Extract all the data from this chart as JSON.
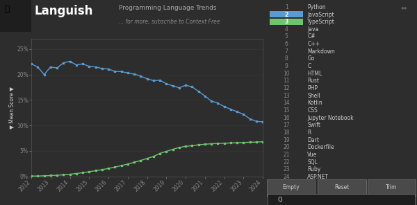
{
  "background_color": "#2d2d2d",
  "plot_bg_color": "#2d2d2d",
  "title": "Languish",
  "subtitle_line1": "Programming Language Trends",
  "subtitle_line2": "... for more, subscribe to Context Free",
  "ylabel": "▼ Mean Score ▼",
  "javascript": [
    22.1,
    21.5,
    20.0,
    21.5,
    21.3,
    22.3,
    22.6,
    21.9,
    22.1,
    21.6,
    21.5,
    21.2,
    21.1,
    20.6,
    20.6,
    20.3,
    20.1,
    19.7,
    19.2,
    18.8,
    18.9,
    18.2,
    17.8,
    17.4,
    17.9,
    17.6,
    16.7,
    15.8,
    14.8,
    14.4,
    13.7,
    13.2,
    12.7,
    12.2,
    11.3,
    10.8,
    10.7
  ],
  "typescript": [
    0.05,
    0.05,
    0.1,
    0.15,
    0.2,
    0.3,
    0.4,
    0.55,
    0.7,
    0.9,
    1.1,
    1.3,
    1.55,
    1.8,
    2.1,
    2.4,
    2.75,
    3.1,
    3.5,
    3.9,
    4.5,
    4.9,
    5.3,
    5.65,
    5.9,
    6.0,
    6.2,
    6.3,
    6.4,
    6.45,
    6.5,
    6.55,
    6.6,
    6.62,
    6.7,
    6.72,
    6.8
  ],
  "js_color": "#5b9bd5",
  "ts_color": "#70c470",
  "x_ticks": [
    2012,
    2013,
    2014,
    2015,
    2016,
    2017,
    2018,
    2019,
    2020,
    2021,
    2022,
    2023,
    2024
  ],
  "x_tick_labels": [
    "2012",
    "2013",
    "2014",
    "2015",
    "2016",
    "2017",
    "2018",
    "2019",
    "2020",
    "2021",
    "2022",
    "2023",
    "2024"
  ],
  "y_ticks": [
    0,
    5,
    10,
    15,
    20,
    25
  ],
  "y_tick_labels": [
    "0%",
    "5%",
    "10%",
    "15%",
    "20%",
    "25%"
  ],
  "ylim": [
    0,
    27
  ],
  "xlim": [
    2012,
    2024
  ],
  "legend_items": [
    {
      "num": "1",
      "label": "Python",
      "color": null
    },
    {
      "num": "2",
      "label": "JavaScript",
      "color": "#5b9bd5"
    },
    {
      "num": "3",
      "label": "TypeScript",
      "color": "#70c470"
    },
    {
      "num": "4",
      "label": "Java",
      "color": null
    },
    {
      "num": "5",
      "label": "C#",
      "color": null
    },
    {
      "num": "6",
      "label": "C++",
      "color": null
    },
    {
      "num": "7",
      "label": "Markdown",
      "color": null
    },
    {
      "num": "8",
      "label": "Go",
      "color": null
    },
    {
      "num": "9",
      "label": "C",
      "color": null
    },
    {
      "num": "10",
      "label": "HTML",
      "color": null
    },
    {
      "num": "11",
      "label": "Rust",
      "color": null
    },
    {
      "num": "12",
      "label": "PHP",
      "color": null
    },
    {
      "num": "13",
      "label": "Shell",
      "color": null
    },
    {
      "num": "14",
      "label": "Kotlin",
      "color": null
    },
    {
      "num": "15",
      "label": "CSS",
      "color": null
    },
    {
      "num": "16",
      "label": "Jupyter Notebook",
      "color": null
    },
    {
      "num": "17",
      "label": "Swift",
      "color": null
    },
    {
      "num": "18",
      "label": "R",
      "color": null
    },
    {
      "num": "19",
      "label": "Dart",
      "color": null
    },
    {
      "num": "20",
      "label": "Dockerfile",
      "color": null
    },
    {
      "num": "21",
      "label": "Vue",
      "color": null
    },
    {
      "num": "22",
      "label": "SQL",
      "color": null
    },
    {
      "num": "23",
      "label": "Ruby",
      "color": null
    },
    {
      "num": "24",
      "label": "ASP.NET",
      "color": null
    }
  ],
  "text_color": "#cccccc",
  "tick_color": "#888888",
  "grid_color": "#3e3e3e",
  "logo_color": "#1e1e1e",
  "btn_bg": "#4a4a4a",
  "btn_border": "#666666",
  "search_bg": "#1e1e1e"
}
